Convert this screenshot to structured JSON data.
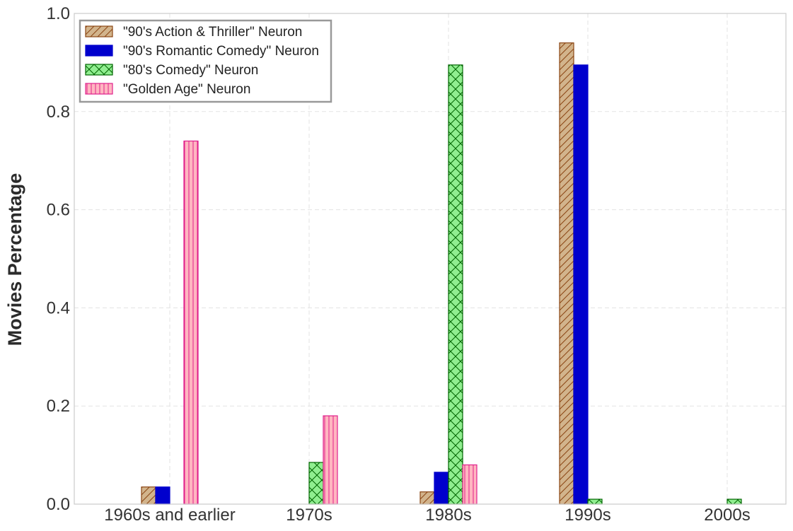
{
  "chart_data": {
    "type": "bar",
    "title": "",
    "xlabel": "",
    "ylabel": "Movies Percentage",
    "ylim": [
      0,
      1.0
    ],
    "yticks": [
      "0.0",
      "0.2",
      "0.4",
      "0.6",
      "0.8",
      "1.0"
    ],
    "grid": true,
    "legend_position": "top-left",
    "categories": [
      "1960s and earlier",
      "1970s",
      "1980s",
      "1990s",
      "2000s"
    ],
    "series": [
      {
        "name": "\"90's Action & Thriller\" Neuron",
        "values": [
          0.035,
          0.0,
          0.025,
          0.94,
          0.0
        ],
        "fill": "#d2b48c",
        "edge": "#8b4513",
        "hatch": "diagonal"
      },
      {
        "name": "\"90's Romantic Comedy\" Neuron",
        "values": [
          0.035,
          0.0,
          0.065,
          0.895,
          0.0
        ],
        "fill": "#0000cd",
        "edge": "#0000cd",
        "hatch": "none"
      },
      {
        "name": "\"80's Comedy\" Neuron",
        "values": [
          0.0,
          0.085,
          0.895,
          0.01,
          0.01
        ],
        "fill": "#90ee90",
        "edge": "#006400",
        "hatch": "cross"
      },
      {
        "name": "\"Golden Age\" Neuron",
        "values": [
          0.74,
          0.18,
          0.08,
          0.0,
          0.0
        ],
        "fill": "#ffb6c1",
        "edge": "#e0208c",
        "hatch": "vertical"
      }
    ]
  }
}
